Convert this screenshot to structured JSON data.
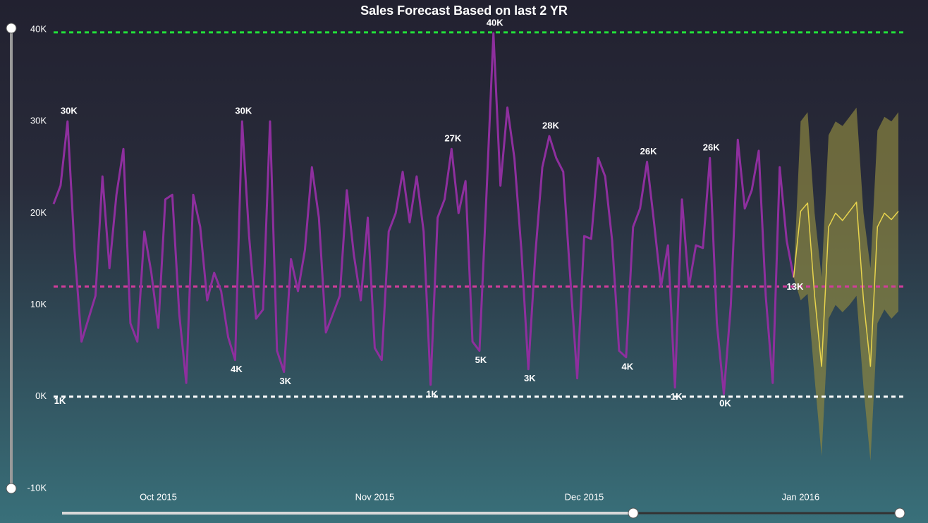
{
  "chart_data": {
    "type": "line",
    "title": "Sales Forecast Based on last 2 YR",
    "categories": [
      null,
      null,
      null,
      null,
      null,
      null,
      null,
      null,
      null,
      null,
      null,
      null,
      null,
      null,
      null,
      "Oct 2015",
      null,
      null,
      null,
      null,
      null,
      null,
      null,
      null,
      null,
      null,
      null,
      null,
      null,
      null,
      null,
      null,
      null,
      null,
      null,
      null,
      null,
      null,
      null,
      null,
      null,
      null,
      null,
      null,
      null,
      null,
      "Nov 2015",
      null,
      null,
      null,
      null,
      null,
      null,
      null,
      null,
      null,
      null,
      null,
      null,
      null,
      null,
      null,
      null,
      null,
      null,
      null,
      null,
      null,
      null,
      null,
      null,
      null,
      null,
      null,
      null,
      null,
      "Dec 2015",
      null,
      null,
      null,
      null,
      null,
      null,
      null,
      null,
      null,
      null,
      null,
      null,
      null,
      null,
      null,
      null,
      null,
      null,
      null,
      null,
      null,
      null,
      null,
      null,
      null,
      null,
      null,
      null,
      null,
      null,
      "Jan 2016",
      null,
      null,
      null,
      null,
      null,
      null,
      null,
      null,
      null,
      null,
      null,
      null,
      null,
      null
    ],
    "series": [
      {
        "color": "#8e2f9e",
        "values": [
          21,
          23,
          30,
          16,
          6,
          8.5,
          11,
          24,
          14,
          22,
          27,
          8,
          6,
          18,
          13.5,
          7.5,
          21.5,
          22,
          9,
          1.5,
          22,
          18.5,
          10.5,
          13.5,
          11.5,
          6.5,
          4,
          30,
          17.5,
          8.5,
          9.5,
          30,
          5,
          2.7,
          15,
          11.5,
          16,
          25,
          19.5,
          7,
          9,
          11,
          22.5,
          15.5,
          10.5,
          19.5,
          5.3,
          4,
          18,
          20,
          24.5,
          19,
          24,
          18,
          1.3,
          19.5,
          21.5,
          27,
          20,
          23.5,
          6,
          5,
          22,
          39.6,
          23,
          31.5,
          26,
          16,
          3,
          15.5,
          25,
          28.4,
          26,
          24.5,
          13,
          2,
          17.5,
          17.2,
          26,
          24,
          17,
          5,
          4.3,
          18.5,
          20.5,
          25.6,
          19,
          12,
          16.5,
          1,
          21.5,
          12,
          16.5,
          16.2,
          26,
          8,
          0.3,
          10,
          28,
          20.5,
          22.5,
          26.8,
          11,
          1.5,
          25,
          17,
          13,
          null,
          null,
          null,
          null,
          null,
          null,
          null,
          null,
          null,
          null,
          null,
          null,
          null,
          null,
          null
        ],
        "value_labels": [
          null,
          null,
          "30K",
          null,
          null,
          null,
          null,
          null,
          null,
          null,
          null,
          null,
          null,
          null,
          null,
          null,
          null,
          null,
          null,
          null,
          null,
          null,
          null,
          null,
          null,
          null,
          "4K",
          "30K",
          null,
          null,
          null,
          null,
          null,
          "3K",
          null,
          null,
          null,
          null,
          null,
          null,
          null,
          null,
          null,
          null,
          null,
          null,
          null,
          null,
          null,
          null,
          null,
          null,
          null,
          null,
          "1K",
          null,
          null,
          "27K",
          null,
          null,
          null,
          "5K",
          null,
          "40K",
          null,
          null,
          null,
          null,
          "3K",
          null,
          null,
          "28K",
          null,
          null,
          null,
          null,
          null,
          null,
          null,
          null,
          null,
          null,
          "4K",
          null,
          null,
          "26K",
          null,
          null,
          null,
          "1K",
          null,
          null,
          null,
          null,
          "26K",
          null,
          "0K",
          null,
          null,
          null,
          null,
          null,
          null,
          null,
          null,
          null,
          "13K",
          null,
          null,
          null,
          null,
          null,
          null,
          null,
          null,
          null,
          null,
          null,
          null,
          null,
          null,
          null
        ]
      },
      {
        "color": "#e8d44d",
        "band_color": "#8a8540",
        "values": [
          null,
          null,
          null,
          null,
          null,
          null,
          null,
          null,
          null,
          null,
          null,
          null,
          null,
          null,
          null,
          null,
          null,
          null,
          null,
          null,
          null,
          null,
          null,
          null,
          null,
          null,
          null,
          null,
          null,
          null,
          null,
          null,
          null,
          null,
          null,
          null,
          null,
          null,
          null,
          null,
          null,
          null,
          null,
          null,
          null,
          null,
          null,
          null,
          null,
          null,
          null,
          null,
          null,
          null,
          null,
          null,
          null,
          null,
          null,
          null,
          null,
          null,
          null,
          null,
          null,
          null,
          null,
          null,
          null,
          null,
          null,
          null,
          null,
          null,
          null,
          null,
          null,
          null,
          null,
          null,
          null,
          null,
          null,
          null,
          null,
          null,
          null,
          null,
          null,
          null,
          null,
          null,
          null,
          null,
          null,
          null,
          null,
          null,
          null,
          null,
          null,
          null,
          null,
          null,
          null,
          null,
          13,
          20.2,
          21.1,
          11,
          3.3,
          18.5,
          20,
          19.2,
          20.2,
          21.2,
          10.5,
          3.3,
          18.5,
          20,
          19.3,
          20.2
        ],
        "upper": [
          null,
          null,
          null,
          null,
          null,
          null,
          null,
          null,
          null,
          null,
          null,
          null,
          null,
          null,
          null,
          null,
          null,
          null,
          null,
          null,
          null,
          null,
          null,
          null,
          null,
          null,
          null,
          null,
          null,
          null,
          null,
          null,
          null,
          null,
          null,
          null,
          null,
          null,
          null,
          null,
          null,
          null,
          null,
          null,
          null,
          null,
          null,
          null,
          null,
          null,
          null,
          null,
          null,
          null,
          null,
          null,
          null,
          null,
          null,
          null,
          null,
          null,
          null,
          null,
          null,
          null,
          null,
          null,
          null,
          null,
          null,
          null,
          null,
          null,
          null,
          null,
          null,
          null,
          null,
          null,
          null,
          null,
          null,
          null,
          null,
          null,
          null,
          null,
          null,
          null,
          null,
          null,
          null,
          null,
          null,
          null,
          null,
          null,
          null,
          null,
          null,
          null,
          null,
          null,
          null,
          null,
          13,
          30,
          31,
          20,
          13,
          28.5,
          30,
          29.5,
          30.5,
          31.5,
          20,
          14,
          29,
          30.5,
          30,
          31
        ],
        "lower": [
          null,
          null,
          null,
          null,
          null,
          null,
          null,
          null,
          null,
          null,
          null,
          null,
          null,
          null,
          null,
          null,
          null,
          null,
          null,
          null,
          null,
          null,
          null,
          null,
          null,
          null,
          null,
          null,
          null,
          null,
          null,
          null,
          null,
          null,
          null,
          null,
          null,
          null,
          null,
          null,
          null,
          null,
          null,
          null,
          null,
          null,
          null,
          null,
          null,
          null,
          null,
          null,
          null,
          null,
          null,
          null,
          null,
          null,
          null,
          null,
          null,
          null,
          null,
          null,
          null,
          null,
          null,
          null,
          null,
          null,
          null,
          null,
          null,
          null,
          null,
          null,
          null,
          null,
          null,
          null,
          null,
          null,
          null,
          null,
          null,
          null,
          null,
          null,
          null,
          null,
          null,
          null,
          null,
          null,
          null,
          null,
          null,
          null,
          null,
          null,
          null,
          null,
          null,
          null,
          null,
          null,
          13,
          10.5,
          11.2,
          2,
          -6.5,
          8.5,
          10,
          9.2,
          10,
          11,
          1,
          -7,
          8,
          9.5,
          8.5,
          9.3
        ]
      }
    ],
    "ylim": [
      -10,
      40
    ],
    "yticks": [
      {
        "value": -10,
        "label": "-10K"
      },
      {
        "value": 0,
        "label": "0K"
      },
      {
        "value": 10,
        "label": "10K"
      },
      {
        "value": 20,
        "label": "20K"
      },
      {
        "value": 30,
        "label": "30K"
      },
      {
        "value": 40,
        "label": "40K"
      }
    ],
    "reference_lines": [
      {
        "value": 39.7,
        "color": "#22e03a"
      },
      {
        "value": 12,
        "color": "#d23c9b"
      },
      {
        "value": 0,
        "color": "#ffffff"
      }
    ],
    "annotations": [
      "1K"
    ]
  }
}
